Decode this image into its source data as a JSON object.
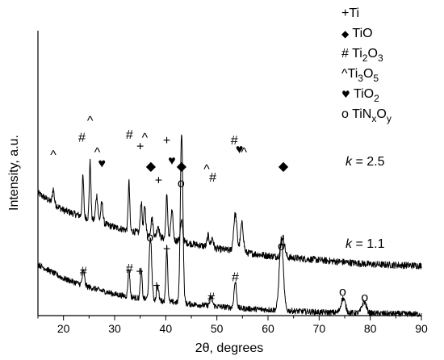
{
  "chart_data": {
    "type": "line",
    "xlabel": "2θ, degrees",
    "ylabel": "Intensity, a.u.",
    "xlim": [
      15,
      90
    ],
    "x_ticks": [
      20,
      30,
      40,
      50,
      60,
      70,
      80,
      90
    ],
    "grid": false,
    "legend": {
      "placement": "top-right",
      "entries": [
        {
          "symbol": "+",
          "formula": [
            {
              "t": "Ti"
            }
          ]
        },
        {
          "symbol": "◆",
          "formula": [
            {
              "t": "TiO"
            }
          ]
        },
        {
          "symbol": "#",
          "formula": [
            {
              "t": "Ti"
            },
            {
              "t": "2",
              "sub": true
            },
            {
              "t": "O"
            },
            {
              "t": "3",
              "sub": true
            }
          ]
        },
        {
          "symbol": "^",
          "formula": [
            {
              "t": "Ti"
            },
            {
              "t": "3",
              "sub": true
            },
            {
              "t": "O"
            },
            {
              "t": "5",
              "sub": true
            }
          ]
        },
        {
          "symbol": "♥",
          "formula": [
            {
              "t": "TiO"
            },
            {
              "t": "2",
              "sub": true
            }
          ]
        },
        {
          "symbol": "o",
          "formula": [
            {
              "t": "TiN"
            },
            {
              "t": "x",
              "sub": true
            },
            {
              "t": "O"
            },
            {
              "t": "y",
              "sub": true
            }
          ]
        }
      ]
    },
    "series": [
      {
        "label_k": "k",
        "label_value": " = 2.5",
        "baseline": [
          [
            15,
            0.43
          ],
          [
            20,
            0.37
          ],
          [
            30,
            0.31
          ],
          [
            40,
            0.27
          ],
          [
            50,
            0.235
          ],
          [
            60,
            0.21
          ],
          [
            70,
            0.195
          ],
          [
            80,
            0.18
          ],
          [
            90,
            0.175
          ]
        ],
        "noise": 0.012,
        "peaks": [
          {
            "x": 18.0,
            "h": 0.05,
            "w": 0.25
          },
          {
            "x": 23.8,
            "h": 0.14,
            "w": 0.22
          },
          {
            "x": 25.2,
            "h": 0.2,
            "w": 0.22
          },
          {
            "x": 26.5,
            "h": 0.09,
            "w": 0.3
          },
          {
            "x": 27.5,
            "h": 0.07,
            "w": 0.3
          },
          {
            "x": 32.8,
            "h": 0.17,
            "w": 0.22
          },
          {
            "x": 35.2,
            "h": 0.11,
            "w": 0.25
          },
          {
            "x": 35.9,
            "h": 0.1,
            "w": 0.25
          },
          {
            "x": 37.3,
            "h": 0.06,
            "w": 0.3
          },
          {
            "x": 38.5,
            "h": 0.04,
            "w": 0.3
          },
          {
            "x": 40.2,
            "h": 0.15,
            "w": 0.25
          },
          {
            "x": 41.2,
            "h": 0.1,
            "w": 0.3
          },
          {
            "x": 43.1,
            "h": 0.07,
            "w": 0.35
          },
          {
            "x": 48.3,
            "h": 0.04,
            "w": 0.3
          },
          {
            "x": 49.1,
            "h": 0.035,
            "w": 0.3
          },
          {
            "x": 53.6,
            "h": 0.13,
            "w": 0.45
          },
          {
            "x": 54.9,
            "h": 0.1,
            "w": 0.4
          },
          {
            "x": 62.9,
            "h": 0.07,
            "w": 0.5
          }
        ]
      },
      {
        "label_k": "k",
        "label_value": " = 1.1",
        "baseline": [
          [
            15,
            0.18
          ],
          [
            20,
            0.13
          ],
          [
            25,
            0.1
          ],
          [
            30,
            0.075
          ],
          [
            35,
            0.06
          ],
          [
            45,
            0.04
          ],
          [
            55,
            0.025
          ],
          [
            70,
            0.012
          ],
          [
            90,
            0.005
          ]
        ],
        "noise": 0.01,
        "peaks": [
          {
            "x": 23.9,
            "h": 0.05,
            "w": 0.3
          },
          {
            "x": 32.8,
            "h": 0.1,
            "w": 0.25
          },
          {
            "x": 35.2,
            "h": 0.1,
            "w": 0.25
          },
          {
            "x": 37.0,
            "h": 0.22,
            "w": 0.35
          },
          {
            "x": 38.4,
            "h": 0.05,
            "w": 0.3
          },
          {
            "x": 40.2,
            "h": 0.19,
            "w": 0.25
          },
          {
            "x": 43.1,
            "h": 0.6,
            "w": 0.35
          },
          {
            "x": 48.9,
            "h": 0.03,
            "w": 0.35
          },
          {
            "x": 53.6,
            "h": 0.09,
            "w": 0.35
          },
          {
            "x": 62.6,
            "h": 0.25,
            "w": 0.55
          },
          {
            "x": 74.7,
            "h": 0.05,
            "w": 0.6
          },
          {
            "x": 78.8,
            "h": 0.04,
            "w": 0.6
          }
        ]
      }
    ],
    "peak_markers": [
      {
        "x": 18.0,
        "y": 0.55,
        "symbol": "^"
      },
      {
        "x": 23.6,
        "y": 0.61,
        "symbol": "#"
      },
      {
        "x": 25.2,
        "y": 0.67,
        "symbol": "^"
      },
      {
        "x": 26.6,
        "y": 0.56,
        "symbol": "^"
      },
      {
        "x": 27.5,
        "y": 0.52,
        "symbol": "♥"
      },
      {
        "x": 32.9,
        "y": 0.62,
        "symbol": "#"
      },
      {
        "x": 35.0,
        "y": 0.58,
        "symbol": "+"
      },
      {
        "x": 35.9,
        "y": 0.61,
        "symbol": "^"
      },
      {
        "x": 37.1,
        "y": 0.51,
        "symbol": "◆"
      },
      {
        "x": 38.6,
        "y": 0.46,
        "symbol": "+"
      },
      {
        "x": 40.2,
        "y": 0.6,
        "symbol": "+"
      },
      {
        "x": 41.2,
        "y": 0.53,
        "symbol": "♥"
      },
      {
        "x": 43.1,
        "y": 0.51,
        "symbol": "◆"
      },
      {
        "x": 48.0,
        "y": 0.5,
        "symbol": "^"
      },
      {
        "x": 49.2,
        "y": 0.47,
        "symbol": "#"
      },
      {
        "x": 53.4,
        "y": 0.6,
        "symbol": "#"
      },
      {
        "x": 54.4,
        "y": 0.57,
        "symbol": "♥"
      },
      {
        "x": 55.3,
        "y": 0.56,
        "symbol": "^"
      },
      {
        "x": 63.0,
        "y": 0.51,
        "symbol": "◆"
      },
      {
        "x": 23.9,
        "y": 0.14,
        "symbol": "#"
      },
      {
        "x": 32.9,
        "y": 0.15,
        "symbol": "#"
      },
      {
        "x": 34.9,
        "y": 0.14,
        "symbol": "+"
      },
      {
        "x": 36.9,
        "y": 0.26,
        "symbol": "o"
      },
      {
        "x": 38.2,
        "y": 0.09,
        "symbol": "+"
      },
      {
        "x": 40.2,
        "y": 0.22,
        "symbol": "+"
      },
      {
        "x": 43.0,
        "y": 0.45,
        "symbol": "o"
      },
      {
        "x": 48.9,
        "y": 0.05,
        "symbol": "#"
      },
      {
        "x": 53.6,
        "y": 0.12,
        "symbol": "#"
      },
      {
        "x": 62.6,
        "y": 0.23,
        "symbol": "o"
      },
      {
        "x": 74.6,
        "y": 0.07,
        "symbol": "o"
      },
      {
        "x": 78.9,
        "y": 0.05,
        "symbol": "o"
      }
    ]
  }
}
